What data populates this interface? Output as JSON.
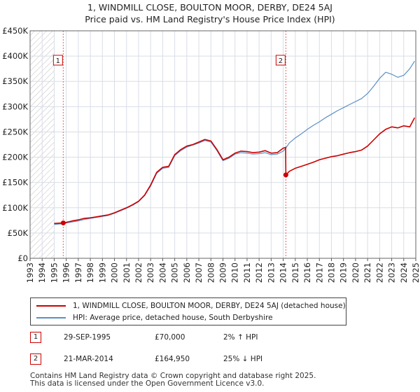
{
  "title": "1, WINDMILL CLOSE, BOULTON MOOR, DERBY, DE24 5AJ",
  "subtitle": "Price paid vs. HM Land Registry's House Price Index (HPI)",
  "legend": {
    "property": "1, WINDMILL CLOSE, BOULTON MOOR, DERBY, DE24 5AJ (detached house)",
    "hpi": "HPI: Average price, detached house, South Derbyshire"
  },
  "transactions": [
    {
      "id": "1",
      "date": "29-SEP-1995",
      "price": "£70,000",
      "hpi_rel": "2% ↑ HPI"
    },
    {
      "id": "2",
      "date": "21-MAR-2014",
      "price": "£164,950",
      "hpi_rel": "25% ↓ HPI"
    }
  ],
  "footer": {
    "line1": "Contains HM Land Registry data © Crown copyright and database right 2025.",
    "line2": "This data is licensed under the Open Government Licence v3.0."
  },
  "colors": {
    "property": "#cc0000",
    "hpi": "#5b8fc7",
    "grid": "#d8dde6",
    "hatch": "#c8c8c8"
  },
  "chart_data": {
    "type": "line",
    "ylim": [
      0,
      450000
    ],
    "xlim": [
      1993,
      2025
    ],
    "y_ticks": [
      0,
      50000,
      100000,
      150000,
      200000,
      250000,
      300000,
      350000,
      400000,
      450000
    ],
    "y_tick_labels": [
      "£0",
      "£50K",
      "£100K",
      "£150K",
      "£200K",
      "£250K",
      "£300K",
      "£350K",
      "£400K",
      "£450K"
    ],
    "x_ticks": [
      "1993",
      "1994",
      "1995",
      "1996",
      "1997",
      "1998",
      "1999",
      "2000",
      "2001",
      "2002",
      "2003",
      "2004",
      "2005",
      "2006",
      "2007",
      "2008",
      "2009",
      "2010",
      "2011",
      "2012",
      "2013",
      "2014",
      "2015",
      "2016",
      "2017",
      "2018",
      "2019",
      "2020",
      "2021",
      "2022",
      "2023",
      "2024",
      "2025"
    ],
    "hatched_range_end": 1995.0,
    "markers": [
      {
        "label": "1",
        "x": 1995.75,
        "y": 70000
      },
      {
        "label": "2",
        "x": 2014.22,
        "y": 164950
      }
    ],
    "series": [
      {
        "name": "1, WINDMILL CLOSE, BOULTON MOOR, DERBY, DE24 5AJ (detached house)",
        "x": [
          1995.0,
          1995.75,
          1996.0,
          1996.5,
          1997.0,
          1997.5,
          1998.0,
          1998.5,
          1999.0,
          1999.5,
          2000.0,
          2000.5,
          2001.0,
          2001.5,
          2002.0,
          2002.5,
          2003.0,
          2003.5,
          2004.0,
          2004.5,
          2005.0,
          2005.5,
          2006.0,
          2006.5,
          2007.0,
          2007.5,
          2008.0,
          2008.5,
          2009.0,
          2009.5,
          2010.0,
          2010.5,
          2011.0,
          2011.5,
          2012.0,
          2012.5,
          2013.0,
          2013.5,
          2014.0,
          2014.2,
          2014.22,
          2014.5,
          2015.0,
          2015.5,
          2016.0,
          2016.5,
          2017.0,
          2017.5,
          2018.0,
          2018.5,
          2019.0,
          2019.5,
          2020.0,
          2020.5,
          2021.0,
          2021.5,
          2022.0,
          2022.5,
          2023.0,
          2023.5,
          2024.0,
          2024.5,
          2024.9
        ],
        "values": [
          69000,
          70000,
          71000,
          74000,
          76000,
          79000,
          80000,
          82000,
          84000,
          86000,
          90000,
          95000,
          100000,
          106000,
          113000,
          125000,
          145000,
          170000,
          180000,
          182000,
          205000,
          215000,
          222000,
          225000,
          230000,
          235000,
          232000,
          215000,
          195000,
          200000,
          208000,
          212000,
          211000,
          209000,
          210000,
          213000,
          208000,
          209000,
          218000,
          219000,
          164950,
          172000,
          178000,
          182000,
          186000,
          190000,
          195000,
          198000,
          201000,
          203000,
          206000,
          209000,
          211000,
          214000,
          222000,
          234000,
          246000,
          255000,
          260000,
          258000,
          262000,
          260000,
          278000
        ]
      },
      {
        "name": "HPI: Average price, detached house, South Derbyshire",
        "x": [
          1995.0,
          1995.75,
          1996.0,
          1996.5,
          1997.0,
          1997.5,
          1998.0,
          1998.5,
          1999.0,
          1999.5,
          2000.0,
          2000.5,
          2001.0,
          2001.5,
          2002.0,
          2002.5,
          2003.0,
          2003.5,
          2004.0,
          2004.5,
          2005.0,
          2005.5,
          2006.0,
          2006.5,
          2007.0,
          2007.5,
          2008.0,
          2008.5,
          2009.0,
          2009.5,
          2010.0,
          2010.5,
          2011.0,
          2011.5,
          2012.0,
          2012.5,
          2013.0,
          2013.5,
          2014.0,
          2014.22,
          2014.5,
          2015.0,
          2015.5,
          2016.0,
          2016.5,
          2017.0,
          2017.5,
          2018.0,
          2018.5,
          2019.0,
          2019.5,
          2020.0,
          2020.5,
          2021.0,
          2021.5,
          2022.0,
          2022.5,
          2023.0,
          2023.5,
          2024.0,
          2024.5,
          2024.9
        ],
        "values": [
          67000,
          68500,
          70000,
          72000,
          74000,
          77000,
          79000,
          81000,
          83000,
          85000,
          89000,
          94000,
          99000,
          105000,
          112000,
          124000,
          143000,
          168000,
          178000,
          180000,
          203000,
          213000,
          220000,
          224000,
          228000,
          233000,
          230000,
          213000,
          193000,
          198000,
          206000,
          209000,
          208000,
          206000,
          207000,
          209000,
          205000,
          206000,
          212000,
          218000,
          228000,
          238000,
          246000,
          255000,
          263000,
          270000,
          278000,
          285000,
          292000,
          298000,
          304000,
          310000,
          316000,
          326000,
          340000,
          356000,
          368000,
          364000,
          358000,
          362000,
          375000,
          390000
        ]
      }
    ]
  }
}
